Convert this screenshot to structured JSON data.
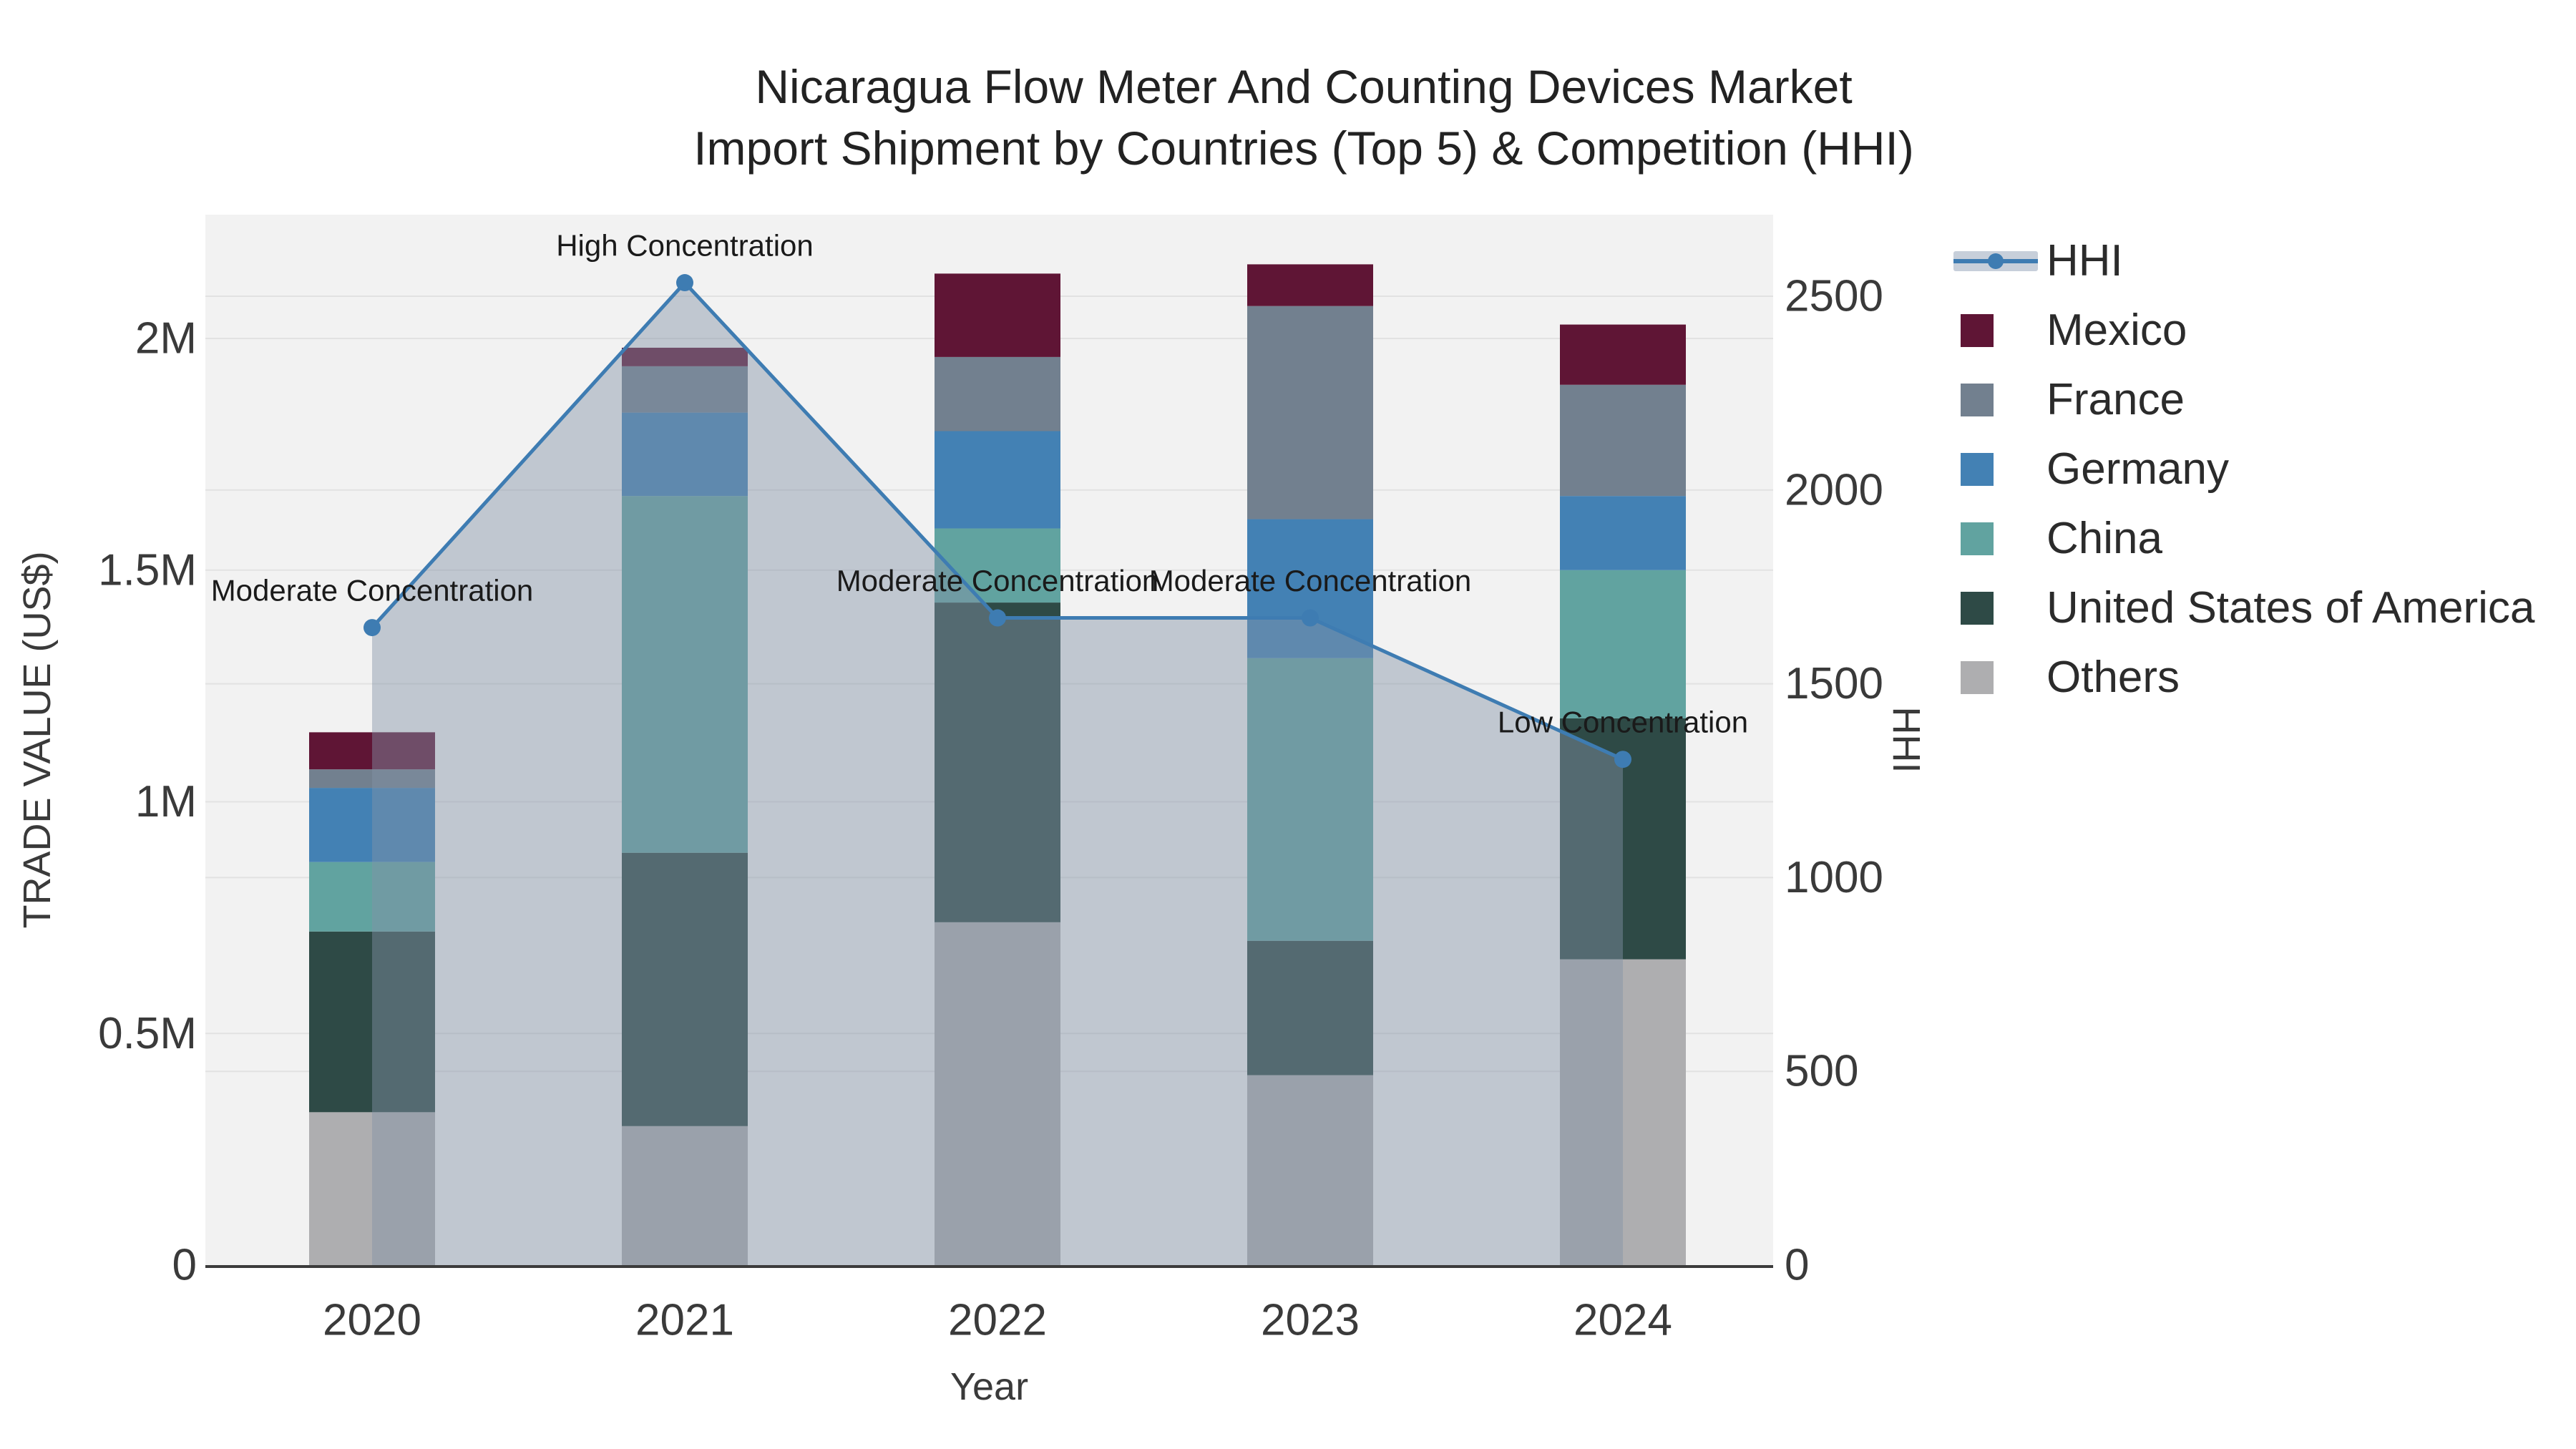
{
  "title": {
    "line1": "Nicaragua Flow Meter And Counting Devices Market",
    "line2": "Import Shipment by Countries (Top 5) & Competition (HHI)"
  },
  "chart_data": {
    "type": "combo: stacked bar + line",
    "categories": [
      "2020",
      "2021",
      "2022",
      "2023",
      "2024"
    ],
    "bar_value_unit": "US$ millions",
    "series": [
      {
        "name": "Others",
        "color": "#AEAEB0",
        "values": [
          0.33,
          0.3,
          0.74,
          0.41,
          0.66
        ]
      },
      {
        "name": "United States of America",
        "color": "#2E4A46",
        "values": [
          0.39,
          0.59,
          0.69,
          0.29,
          0.52
        ]
      },
      {
        "name": "China",
        "color": "#61A3A0",
        "values": [
          0.15,
          0.77,
          0.16,
          0.61,
          0.32
        ]
      },
      {
        "name": "Germany",
        "color": "#4381B4",
        "values": [
          0.16,
          0.18,
          0.21,
          0.3,
          0.16
        ]
      },
      {
        "name": "France",
        "color": "#72808F",
        "values": [
          0.04,
          0.1,
          0.16,
          0.46,
          0.24
        ]
      },
      {
        "name": "Mexico",
        "color": "#5F1535",
        "values": [
          0.08,
          0.04,
          0.18,
          0.09,
          0.13
        ]
      }
    ],
    "line": {
      "name": "HHI",
      "color": "#3E7CB2",
      "area_color": "rgba(131,146,166,0.45)",
      "values": [
        1645,
        2535,
        1670,
        1670,
        1305
      ]
    },
    "annotations": [
      {
        "x": "2020",
        "text": "Moderate Concentration"
      },
      {
        "x": "2021",
        "text": "High Concentration"
      },
      {
        "x": "2022",
        "text": "Moderate Concentration"
      },
      {
        "x": "2023",
        "text": "Moderate Concentration"
      },
      {
        "x": "2024",
        "text": "Low Concentration"
      }
    ],
    "y_left": {
      "title": "TRADE VALUE (US$)",
      "ticks": [
        "0",
        "0.5M",
        "1M",
        "1.5M",
        "2M"
      ],
      "tick_values": [
        0,
        0.5,
        1,
        1.5,
        2
      ],
      "range": [
        0,
        2.27
      ]
    },
    "y_right": {
      "title": "HHI",
      "ticks": [
        "0",
        "500",
        "1000",
        "1500",
        "2000",
        "2500"
      ],
      "tick_values": [
        0,
        500,
        1000,
        1500,
        2000,
        2500
      ],
      "range": [
        0,
        2710
      ]
    },
    "x": {
      "title": "Year"
    },
    "grid": true,
    "legend_position": "right"
  },
  "legend": {
    "items": [
      {
        "label": "HHI",
        "type": "line",
        "color": "#3E7CB2"
      },
      {
        "label": "Mexico",
        "type": "swatch",
        "color": "#5F1535"
      },
      {
        "label": "France",
        "type": "swatch",
        "color": "#72808F"
      },
      {
        "label": "Germany",
        "type": "swatch",
        "color": "#4381B4"
      },
      {
        "label": "China",
        "type": "swatch",
        "color": "#61A3A0"
      },
      {
        "label": "United States of America",
        "type": "swatch",
        "color": "#2E4A46"
      },
      {
        "label": "Others",
        "type": "swatch",
        "color": "#AEAEB0"
      }
    ]
  },
  "colors": {
    "plot_background": "#F2F2F2",
    "grid_line": "#E2E2E2",
    "axis_line": "#3C3C3C",
    "tick_text": "#3a3a3a",
    "annotation_text": "#1a1a1a"
  }
}
